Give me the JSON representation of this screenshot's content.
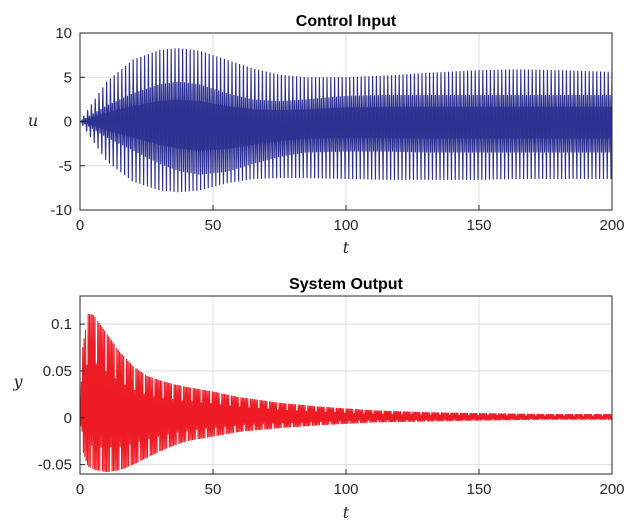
{
  "chart_data": [
    {
      "type": "line",
      "title": "Control Input",
      "xlabel": "t",
      "ylabel": "u",
      "xlim": [
        0,
        200
      ],
      "ylim": [
        -10,
        10
      ],
      "xticks": [
        "0",
        "50",
        "100",
        "150",
        "200"
      ],
      "yticks": [
        "10",
        "5",
        "0",
        "-5",
        "-10"
      ],
      "xtick_values": [
        0,
        50,
        100,
        150,
        200
      ],
      "ytick_values": [
        10,
        5,
        0,
        -5,
        -10
      ],
      "grid": true,
      "color": "#2e3192",
      "series": [
        {
          "x": [
            0,
            10,
            20,
            30,
            37,
            45,
            55,
            65,
            75,
            85,
            100,
            115,
            130,
            150,
            165,
            180,
            200
          ],
          "upper": [
            0,
            4.5,
            7.0,
            8.1,
            8.3,
            8.0,
            7.0,
            6.0,
            5.3,
            5.0,
            5.0,
            5.2,
            5.5,
            5.8,
            5.9,
            5.8,
            5.6
          ],
          "lower": [
            0,
            -4.5,
            -6.8,
            -7.8,
            -8.0,
            -7.8,
            -7.0,
            -6.5,
            -6.4,
            -6.4,
            -6.5,
            -6.6,
            -6.6,
            -6.6,
            -6.5,
            -6.5,
            -6.5
          ],
          "inner_upper": [
            0,
            1.8,
            3.2,
            4.2,
            4.5,
            4.2,
            3.2,
            2.5,
            2.3,
            2.5,
            2.9,
            3.0,
            3.0,
            3.0,
            3.0,
            3.0,
            3.0
          ],
          "inner_lower": [
            0,
            -1.8,
            -3.3,
            -4.8,
            -5.6,
            -6.0,
            -5.7,
            -4.8,
            -4.0,
            -3.5,
            -3.4,
            -3.4,
            -3.5,
            -3.5,
            -3.5,
            -3.5,
            -3.5
          ]
        }
      ]
    },
    {
      "type": "line",
      "title": "System Output",
      "xlabel": "t",
      "ylabel": "y",
      "xlim": [
        0,
        200
      ],
      "ylim": [
        -0.06,
        0.13
      ],
      "xticks": [
        "0",
        "50",
        "100",
        "150",
        "200"
      ],
      "yticks": [
        "0.1",
        "0.05",
        "0",
        "-0.05"
      ],
      "xtick_values": [
        0,
        50,
        100,
        150,
        200
      ],
      "ytick_values": [
        0.1,
        0.05,
        0,
        -0.05
      ],
      "grid": true,
      "color": "#ee1c25",
      "series": [
        {
          "x": [
            0,
            1,
            3,
            5,
            8,
            10,
            15,
            20,
            25,
            30,
            35,
            40,
            50,
            60,
            75,
            90,
            110,
            130,
            150,
            175,
            200
          ],
          "upper": [
            0,
            0.075,
            0.111,
            0.11,
            0.098,
            0.09,
            0.07,
            0.055,
            0.045,
            0.04,
            0.036,
            0.033,
            0.028,
            0.022,
            0.016,
            0.012,
            0.008,
            0.006,
            0.005,
            0.004,
            0.004
          ],
          "lower": [
            0,
            -0.035,
            -0.052,
            -0.055,
            -0.057,
            -0.058,
            -0.056,
            -0.05,
            -0.043,
            -0.036,
            -0.03,
            -0.025,
            -0.02,
            -0.015,
            -0.011,
            -0.008,
            -0.005,
            -0.004,
            -0.003,
            -0.002,
            -0.002
          ]
        }
      ]
    }
  ]
}
